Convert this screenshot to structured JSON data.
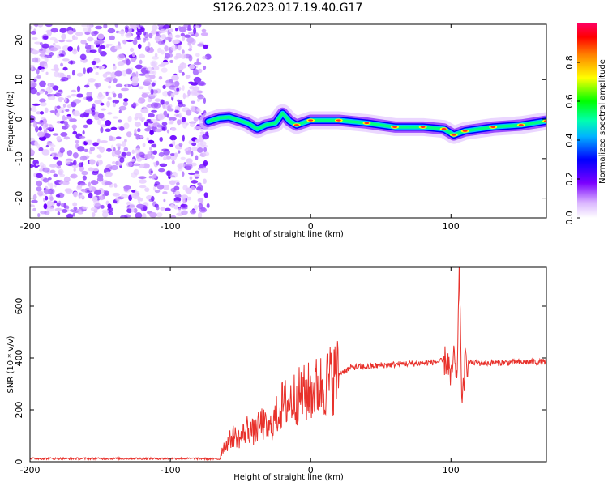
{
  "title": "S126.2023.017.19.40.G17",
  "colors": {
    "snr_line": "#e8312b",
    "axis": "#000000"
  },
  "chart_data": [
    {
      "type": "heatmap",
      "xlabel": "Height of straight line (km)",
      "ylabel": "Frequency (Hz)",
      "xlim": [
        -200,
        168
      ],
      "ylim": [
        -25,
        24
      ],
      "xticks": [
        "-200",
        "-100",
        "0",
        "100"
      ],
      "yticks": [
        "-20",
        "-10",
        "0",
        "10",
        "20"
      ],
      "noise_region_x": [
        -200,
        -73
      ],
      "signal_ridge": [
        {
          "x": -73,
          "y": -0.6
        },
        {
          "x": -65,
          "y": 0.3
        },
        {
          "x": -58,
          "y": 0.5
        },
        {
          "x": -52,
          "y": -0.2
        },
        {
          "x": -45,
          "y": -1.0
        },
        {
          "x": -38,
          "y": -2.5
        },
        {
          "x": -32,
          "y": -1.5
        },
        {
          "x": -25,
          "y": -1.0
        },
        {
          "x": -20,
          "y": 1.5
        },
        {
          "x": -15,
          "y": -0.5
        },
        {
          "x": -10,
          "y": -1.5
        },
        {
          "x": 0,
          "y": -0.3
        },
        {
          "x": 20,
          "y": -0.3
        },
        {
          "x": 40,
          "y": -1.0
        },
        {
          "x": 60,
          "y": -2.0
        },
        {
          "x": 80,
          "y": -2.0
        },
        {
          "x": 95,
          "y": -2.5
        },
        {
          "x": 102,
          "y": -4.0
        },
        {
          "x": 110,
          "y": -3.0
        },
        {
          "x": 130,
          "y": -2.0
        },
        {
          "x": 150,
          "y": -1.5
        },
        {
          "x": 168,
          "y": -0.5
        }
      ],
      "colorbar": {
        "label": "Normalized spectral amplitude",
        "ticks": [
          "0.0",
          "0.2",
          "0.4",
          "0.6",
          "0.8"
        ]
      }
    },
    {
      "type": "line",
      "xlabel": "Height of straight line (km)",
      "ylabel": "SNR (10 * v/v)",
      "xlim": [
        -200,
        168
      ],
      "ylim": [
        0,
        750
      ],
      "xticks": [
        "-200",
        "-100",
        "0",
        "100"
      ],
      "yticks": [
        "0",
        "200",
        "400",
        "600"
      ],
      "series": [
        {
          "x": [
            -200,
            -150,
            -100,
            -80,
            -65,
            -63,
            -55,
            -50,
            -45,
            -40,
            -35,
            -30,
            -25,
            -20,
            -10,
            0,
            10,
            20,
            30,
            40,
            50,
            60,
            70,
            80,
            90,
            98,
            100,
            102,
            104,
            106,
            108,
            110,
            120,
            140,
            160,
            168
          ],
          "y": [
            12,
            12,
            12,
            12,
            10,
            50,
            100,
            90,
            130,
            110,
            150,
            120,
            170,
            220,
            250,
            270,
            300,
            340,
            365,
            365,
            372,
            375,
            378,
            380,
            385,
            390,
            300,
            420,
            280,
            740,
            200,
            385,
            380,
            382,
            385,
            385
          ]
        }
      ]
    }
  ]
}
